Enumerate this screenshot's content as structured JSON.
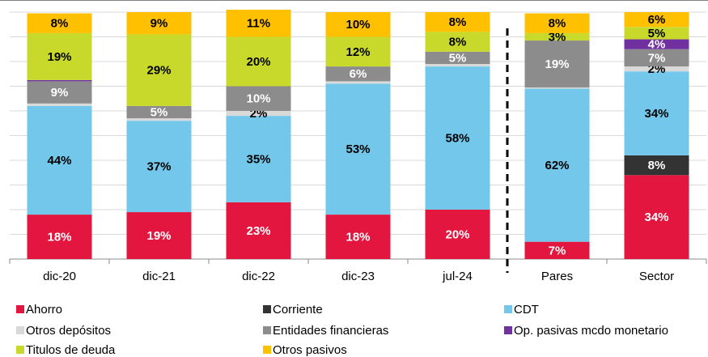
{
  "chart_data": {
    "type": "stacked_bar",
    "categories": [
      "dic-20",
      "dic-21",
      "dic-22",
      "dic-23",
      "jul-24",
      "Pares",
      "Sector"
    ],
    "series": [
      {
        "name": "Ahorro",
        "color": "#e2163f",
        "label_color": "#ffffff",
        "values": [
          18,
          19,
          23,
          18,
          20,
          7,
          34
        ],
        "value_labels": [
          "18%",
          "19%",
          "23%",
          "18%",
          "20%",
          "7%",
          "34%"
        ]
      },
      {
        "name": "Corriente",
        "color": "#333333",
        "label_color": "#ffffff",
        "values": [
          0,
          0,
          0,
          0,
          0,
          0,
          8
        ],
        "value_labels": [
          null,
          null,
          null,
          null,
          null,
          null,
          "8%"
        ]
      },
      {
        "name": "CDT",
        "color": "#72c7ea",
        "label_color": "#000000",
        "values": [
          44,
          37,
          35,
          53,
          58,
          62,
          34
        ],
        "value_labels": [
          "44%",
          "37%",
          "35%",
          "53%",
          "58%",
          "62%",
          "34%"
        ]
      },
      {
        "name": "Otros depósitos",
        "color": "#d9d9d9",
        "label_color": "#000000",
        "values": [
          1,
          1,
          2,
          1,
          1,
          0.5,
          2
        ],
        "value_labels": [
          null,
          null,
          "2%",
          null,
          null,
          null,
          "2%"
        ]
      },
      {
        "name": "Entidades financieras",
        "color": "#8c8c8c",
        "label_color": "#ffffff",
        "values": [
          9,
          5,
          10,
          6,
          5,
          19,
          7
        ],
        "value_labels": [
          "9%",
          "5%",
          "10%",
          "6%",
          "5%",
          "19%",
          "7%"
        ]
      },
      {
        "name": "Op. pasivas mcdo monetario",
        "color": "#7030a0",
        "label_color": "#ffffff",
        "values": [
          0.5,
          0,
          0,
          0,
          0,
          0,
          4
        ],
        "value_labels": [
          null,
          null,
          null,
          null,
          null,
          null,
          "4%"
        ]
      },
      {
        "name": "Titulos de deuda",
        "color": "#c8d92b",
        "label_color": "#000000",
        "values": [
          19,
          29,
          20,
          12,
          8,
          3,
          5
        ],
        "value_labels": [
          "19%",
          "29%",
          "20%",
          "12%",
          "8%",
          "3%",
          "5%"
        ]
      },
      {
        "name": "Otros pasivos",
        "color": "#ffc000",
        "label_color": "#000000",
        "values": [
          8,
          9,
          11,
          10,
          8,
          8,
          6
        ],
        "value_labels": [
          "8%",
          "9%",
          "11%",
          "10%",
          "8%",
          "8%",
          "6%"
        ]
      }
    ],
    "ylim": [
      0,
      100
    ],
    "yticks": [
      0,
      10,
      20,
      30,
      40,
      50,
      60,
      70,
      80,
      90,
      100
    ],
    "grid": true
  }
}
